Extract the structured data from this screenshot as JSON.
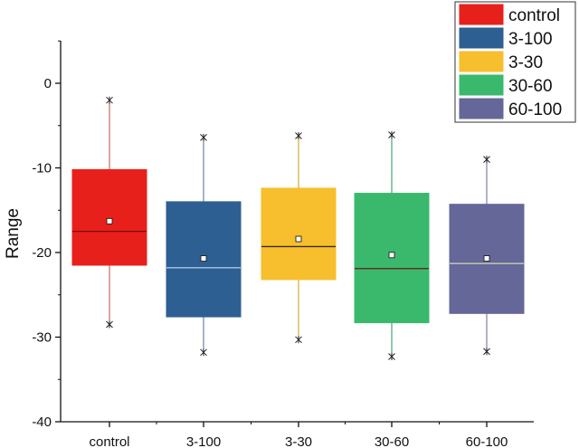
{
  "chart_data": {
    "type": "box",
    "title": "",
    "xlabel": "",
    "ylabel": "Range",
    "ylim": [
      -40,
      5
    ],
    "yticks": [
      0,
      -10,
      -20,
      -30,
      -40
    ],
    "ytick_labels": [
      "0",
      "-10",
      "-20",
      "-30",
      "-40"
    ],
    "grid": false,
    "legend_position": "top-right",
    "categories": [
      "control",
      "3-100",
      "3-30",
      "30-60",
      "60-100"
    ],
    "series": [
      {
        "name": "control",
        "color": "#e8201c",
        "median_color": "#7a0b08",
        "whisker_color": "#c66a64",
        "min": -28.5,
        "q1": -21.5,
        "median": -17.5,
        "q3": -10.2,
        "max": -2.0,
        "mean": -16.3
      },
      {
        "name": "3-100",
        "color": "#2e5f92",
        "median_color": "#a9c6e2",
        "whisker_color": "#6b86a6",
        "min": -31.8,
        "q1": -27.6,
        "median": -21.8,
        "q3": -14.0,
        "max": -6.4,
        "mean": -20.7
      },
      {
        "name": "3-30",
        "color": "#f7bf2d",
        "median_color": "#3a2a00",
        "whisker_color": "#d9a93a",
        "min": -30.3,
        "q1": -23.2,
        "median": -19.3,
        "q3": -12.4,
        "max": -6.2,
        "mean": -18.4
      },
      {
        "name": "30-60",
        "color": "#3ab96d",
        "median_color": "#6a1818",
        "whisker_color": "#4a9f74",
        "min": -32.3,
        "q1": -28.3,
        "median": -21.9,
        "q3": -13.0,
        "max": -6.1,
        "mean": -20.3
      },
      {
        "name": "60-100",
        "color": "#646797",
        "median_color": "#d4d9b8",
        "whisker_color": "#7f82a6",
        "min": -31.7,
        "q1": -27.2,
        "median": -21.3,
        "q3": -14.3,
        "max": -9.0,
        "mean": -20.7
      }
    ]
  }
}
